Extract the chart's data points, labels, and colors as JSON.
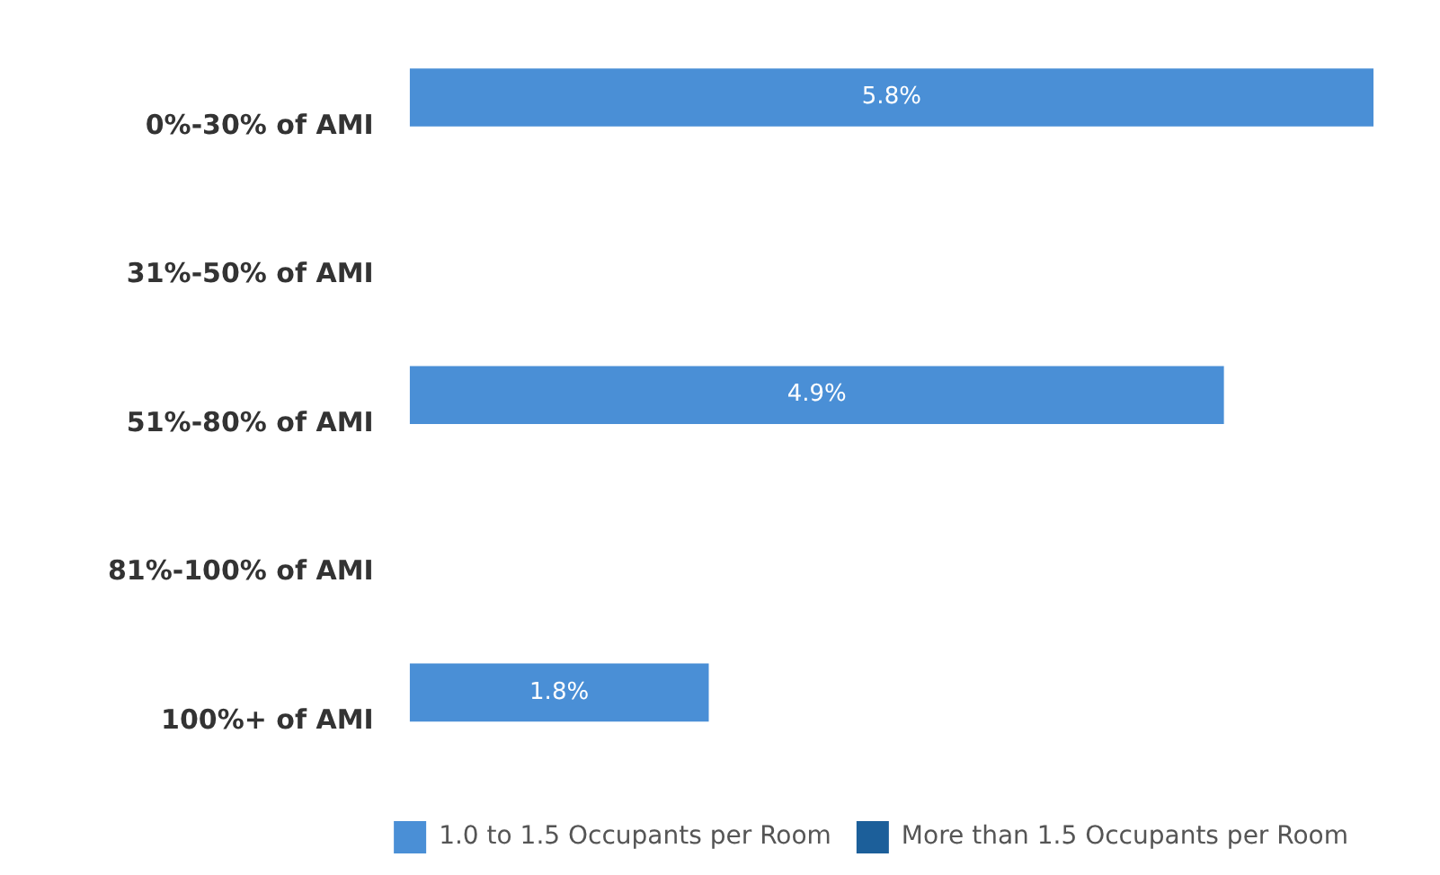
{
  "chart_data": {
    "type": "bar",
    "orientation": "horizontal",
    "categories": [
      "0%-30% of AMI",
      "31%-50% of AMI",
      "51%-80% of AMI",
      "81%-100% of AMI",
      "100%+ of AMI"
    ],
    "series": [
      {
        "name": "1.0 to 1.5 Occupants per Room",
        "color": "#4a8fd6",
        "values": [
          5.8,
          null,
          4.9,
          null,
          1.8
        ],
        "value_labels": [
          "5.8%",
          null,
          "4.9%",
          null,
          "1.8%"
        ]
      },
      {
        "name": "More than 1.5 Occupants per Room",
        "color": "#1c5f9a",
        "values": [
          null,
          null,
          null,
          null,
          null
        ]
      }
    ],
    "xlim": [
      0,
      5.8
    ],
    "tick_labels": "y",
    "grid": false,
    "legend": "bottom right"
  }
}
